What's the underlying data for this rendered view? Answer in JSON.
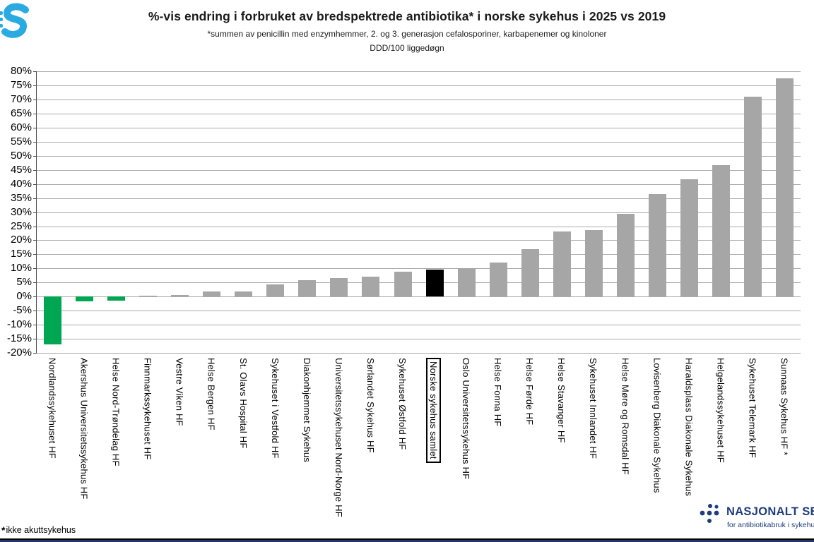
{
  "header": {
    "title": "%-vis endring i forbruket av bredspektrede antibiotika* i norske sykehus i 2025 vs 2019",
    "subtitle": "*summen av penicillin med enzymhemmer, 2. og 3. generasjon cefalosporiner, karbapenemer og kinoloner",
    "unit_line": "DDD/100 liggedøgn"
  },
  "chart_data": {
    "type": "bar",
    "title": "%-vis endring i forbruket av bredspektrede antibiotika* i norske sykehus i 2025 vs 2019",
    "subtitle": "*summen av penicillin med enzymhemmer, 2. og 3. generasjon cefalosporiner, karbapenemer og kinoloner",
    "unit": "DDD/100 liggedøgn",
    "ylim": [
      -20,
      80
    ],
    "ytick_step": 5,
    "ytick_suffix": "%",
    "grid": true,
    "legend": "none",
    "categories": [
      "Nordlandssykehuset HF",
      "Akershus Universitetssykehus HF",
      "Helse Nord-Trøndelag HF",
      "Finnmarkssykehuset HF",
      "Vestre Viken HF",
      "Helse Bergen HF",
      "St. Olavs Hospital HF",
      "Sykehuset i Vestfold HF",
      "Diakonhjemmet Sykehus",
      "Universitetssykehuset Nord-Norge HF",
      "Sørlandet Sykehus HF",
      "Sykehuset Østfold HF",
      "Norske sykehus samlet",
      "Oslo Universitetssykehus HF",
      "Helse Fonna HF",
      "Helse Førde HF",
      "Helse Stavanger HF",
      "Sykehuset Innlandet HF",
      "Helse Møre og Romsdal HF",
      "Lovisenberg Diakonale Sykehus",
      "Haraldsplass Diakonale Sykehus",
      "Helgelandssykehuset HF",
      "Sykehuset Telemark HF",
      "Sunnaas Sykehus HF *"
    ],
    "values": [
      -17.0,
      -1.8,
      -1.5,
      0.4,
      0.5,
      1.8,
      1.9,
      4.4,
      5.9,
      6.6,
      7.2,
      8.8,
      9.7,
      10.0,
      12.2,
      16.9,
      23.0,
      23.7,
      29.4,
      36.4,
      41.6,
      46.6,
      70.9,
      77.6
    ],
    "bar_colors": [
      "#00A651",
      "#00A651",
      "#00A651",
      "#A6A6A6",
      "#A6A6A6",
      "#A6A6A6",
      "#A6A6A6",
      "#A6A6A6",
      "#A6A6A6",
      "#A6A6A6",
      "#A6A6A6",
      "#A6A6A6",
      "#000000",
      "#A6A6A6",
      "#A6A6A6",
      "#A6A6A6",
      "#A6A6A6",
      "#A6A6A6",
      "#A6A6A6",
      "#A6A6A6",
      "#A6A6A6",
      "#A6A6A6",
      "#A6A6A6",
      "#A6A6A6"
    ],
    "boxed_label_index": 12,
    "highlight_category": "Norske sykehus samlet",
    "colors": {
      "decrease": "#00A651",
      "increase": "#A6A6A6",
      "national_total": "#000000",
      "grid": "#ABABAB",
      "axis": "#4D4D4D"
    }
  },
  "footer": {
    "footnote_star": "*",
    "footnote_text": "ikke akuttsykehus",
    "org_name": "NASJONALT SENTER",
    "org_tagline": "for antibiotikabruk i sykehus",
    "navy": "#1F3864",
    "cyan": "#29ABE2"
  }
}
